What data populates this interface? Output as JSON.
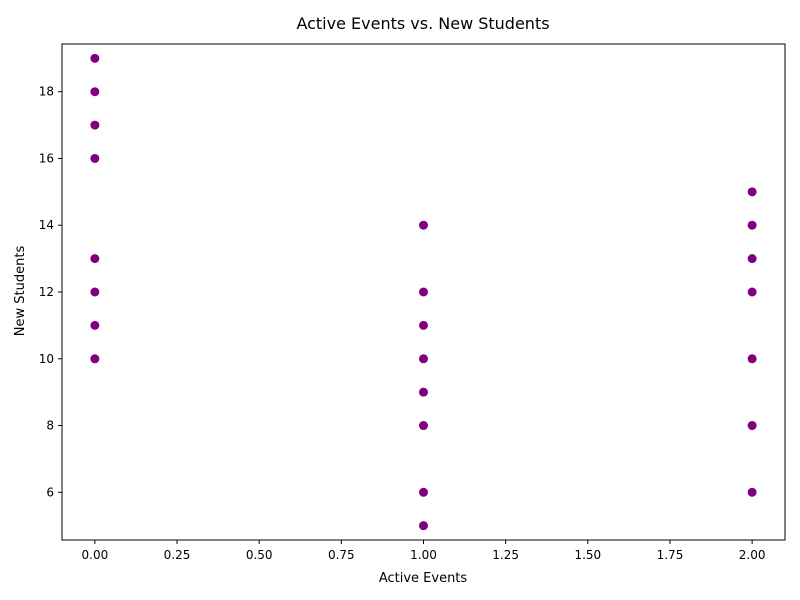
{
  "chart_data": {
    "type": "scatter",
    "title": "Active Events vs. New Students",
    "xlabel": "Active Events",
    "ylabel": "New Students",
    "xlim": [
      -0.1,
      2.1
    ],
    "ylim": [
      4.57,
      19.43
    ],
    "x_ticks": [
      0.0,
      0.25,
      0.5,
      0.75,
      1.0,
      1.25,
      1.5,
      1.75,
      2.0
    ],
    "x_tick_labels": [
      "0.00",
      "0.25",
      "0.50",
      "0.75",
      "1.00",
      "1.25",
      "1.50",
      "1.75",
      "2.00"
    ],
    "y_ticks": [
      6,
      8,
      10,
      12,
      14,
      16,
      18
    ],
    "y_tick_labels": [
      "6",
      "8",
      "10",
      "12",
      "14",
      "16",
      "18"
    ],
    "grid": false,
    "marker_color": "#800080",
    "points": [
      {
        "x": 0,
        "y": 19
      },
      {
        "x": 0,
        "y": 18
      },
      {
        "x": 0,
        "y": 17
      },
      {
        "x": 0,
        "y": 16
      },
      {
        "x": 0,
        "y": 13
      },
      {
        "x": 0,
        "y": 12
      },
      {
        "x": 0,
        "y": 11
      },
      {
        "x": 0,
        "y": 10
      },
      {
        "x": 1,
        "y": 14
      },
      {
        "x": 1,
        "y": 12
      },
      {
        "x": 1,
        "y": 11
      },
      {
        "x": 1,
        "y": 10
      },
      {
        "x": 1,
        "y": 9
      },
      {
        "x": 1,
        "y": 8
      },
      {
        "x": 1,
        "y": 6
      },
      {
        "x": 1,
        "y": 5
      },
      {
        "x": 2,
        "y": 15
      },
      {
        "x": 2,
        "y": 14
      },
      {
        "x": 2,
        "y": 13
      },
      {
        "x": 2,
        "y": 12
      },
      {
        "x": 2,
        "y": 10
      },
      {
        "x": 2,
        "y": 8
      },
      {
        "x": 2,
        "y": 6
      }
    ]
  }
}
